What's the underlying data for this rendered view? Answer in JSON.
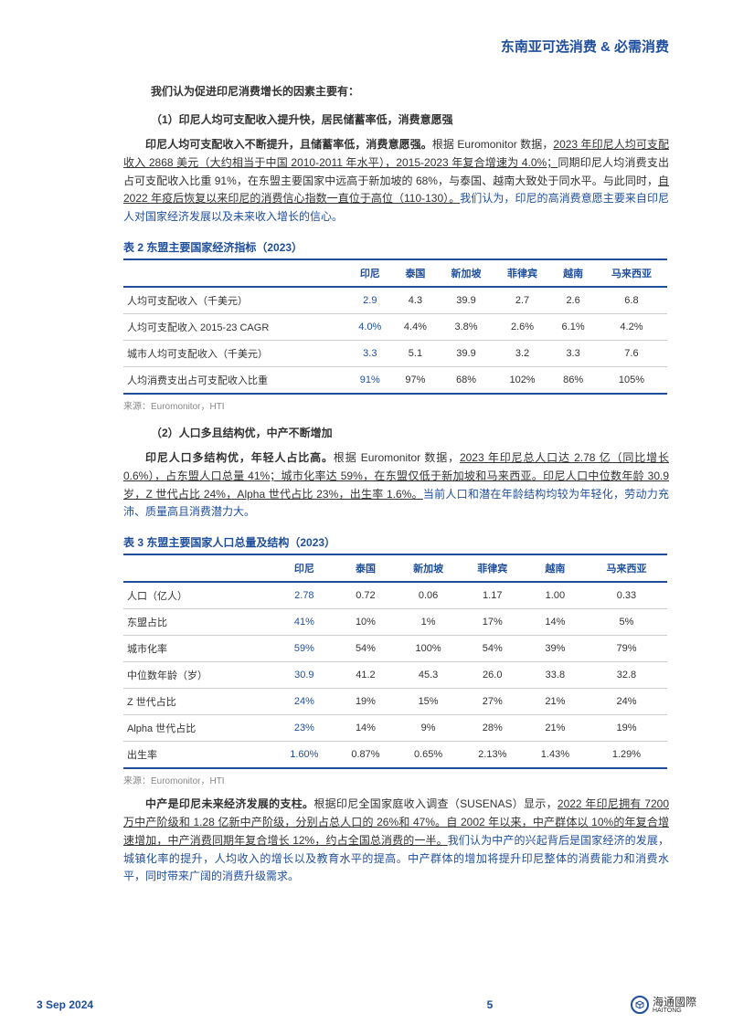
{
  "header": {
    "title": "东南亚可选消费 & 必需消费"
  },
  "intro": "我们认为促进印尼消费增长的因素主要有：",
  "sec1": {
    "title": "（1）印尼人均可支配收入提升快，居民储蓄率低，消费意愿强",
    "para_bold": "印尼人均可支配收入不断提升，且储蓄率低，消费意愿强。",
    "para_text1": "根据 Euromonitor 数据，",
    "para_u1": "2023 年印尼人均可支配收入 2868 美元（大约相当于中国 2010-2011 年水平），2015-2023 年复合增速为 4.0%；",
    "para_text2": "同期印尼人均消费支出占可支配收入比重 91%，在东盟主要国家中远高于新加坡的 68%，与泰国、越南大致处于同水平。与此同时，",
    "para_u2": "自 2022 年疫后恢复以来印尼的消费信心指数一直位于高位（110-130）。",
    "para_blue": "我们认为，印尼的高消费意愿主要来自印尼人对国家经济发展以及未来收入增长的信心。"
  },
  "table2": {
    "title": "表 2 东盟主要国家经济指标（2023）",
    "cols": [
      "",
      "印尼",
      "泰国",
      "新加坡",
      "菲律宾",
      "越南",
      "马来西亚"
    ],
    "rows": [
      {
        "label": "人均可支配收入（千美元）",
        "hl": "2.9",
        "v": [
          "4.3",
          "39.9",
          "2.7",
          "2.6",
          "6.8"
        ]
      },
      {
        "label": "人均可支配收入 2015-23 CAGR",
        "hl": "4.0%",
        "v": [
          "4.4%",
          "3.8%",
          "2.6%",
          "6.1%",
          "4.2%"
        ]
      },
      {
        "label": "城市人均可支配收入（千美元）",
        "hl": "3.3",
        "v": [
          "5.1",
          "39.9",
          "3.2",
          "3.3",
          "7.6"
        ]
      },
      {
        "label": "人均消费支出占可支配收入比重",
        "hl": "91%",
        "v": [
          "97%",
          "68%",
          "102%",
          "86%",
          "105%"
        ]
      }
    ],
    "source": "来源：Euromonitor，HTI"
  },
  "sec2": {
    "title": "（2）人口多且结构优，中产不断增加",
    "para_bold": "印尼人口多结构优，年轻人占比高。",
    "para_text1": "根据 Euromonitor 数据，",
    "para_u1": "2023 年印尼总人口达 2.78 亿（同比增长 0.6%），占东盟人口总量 41%；城市化率达 59%，在东盟仅低于新加坡和马来西亚。印尼人口中位数年龄 30.9 岁，Z 世代占比 24%，Alpha 世代占比 23%，出生率 1.6%。",
    "para_blue": "当前人口和潜在年龄结构均较为年轻化，劳动力充沛、质量高且消费潜力大。"
  },
  "table3": {
    "title": "表 3 东盟主要国家人口总量及结构（2023）",
    "cols": [
      "",
      "印尼",
      "泰国",
      "新加坡",
      "菲律宾",
      "越南",
      "马来西亚"
    ],
    "rows": [
      {
        "label": "人口（亿人）",
        "hl": "2.78",
        "v": [
          "0.72",
          "0.06",
          "1.17",
          "1.00",
          "0.33"
        ]
      },
      {
        "label": "东盟占比",
        "hl": "41%",
        "v": [
          "10%",
          "1%",
          "17%",
          "14%",
          "5%"
        ]
      },
      {
        "label": "城市化率",
        "hl": "59%",
        "v": [
          "54%",
          "100%",
          "54%",
          "39%",
          "79%"
        ]
      },
      {
        "label": "中位数年龄（岁）",
        "hl": "30.9",
        "v": [
          "41.2",
          "45.3",
          "26.0",
          "33.8",
          "32.8"
        ]
      },
      {
        "label": "Z 世代占比",
        "hl": "24%",
        "v": [
          "19%",
          "15%",
          "27%",
          "21%",
          "24%"
        ]
      },
      {
        "label": "Alpha 世代占比",
        "hl": "23%",
        "v": [
          "14%",
          "9%",
          "28%",
          "21%",
          "19%"
        ]
      },
      {
        "label": "出生率",
        "hl": "1.60%",
        "v": [
          "0.87%",
          "0.65%",
          "2.13%",
          "1.43%",
          "1.29%"
        ]
      }
    ],
    "source": "来源：Euromonitor，HTI"
  },
  "sec3": {
    "para_bold": "中产是印尼未来经济发展的支柱。",
    "para_text1": "根据印尼全国家庭收入调查（SUSENAS）显示，",
    "para_u1": "2022 年印尼拥有 7200 万中产阶级和 1.28 亿新中产阶级，分别占总人口的 26%和 47%。自 2002 年以来，中产群体以 10%的年复合增速增加，中产消费同期年复合增长 12%，约占全国总消费的一半。",
    "para_blue": "我们认为中产的兴起背后是国家经济的发展，城镇化率的提升，人均收入的增长以及教育水平的提高。中产群体的增加将提升印尼整体的消费能力和消费水平，同时带来广阔的消费升级需求。"
  },
  "footer": {
    "date": "3 Sep 2024",
    "page": "5",
    "logo_text": "海通國際",
    "logo_text2": "HAITONG"
  },
  "colors": {
    "brand": "#1f4e9c",
    "text": "#333333",
    "border": "#cccccc",
    "bg": "#ffffff"
  }
}
